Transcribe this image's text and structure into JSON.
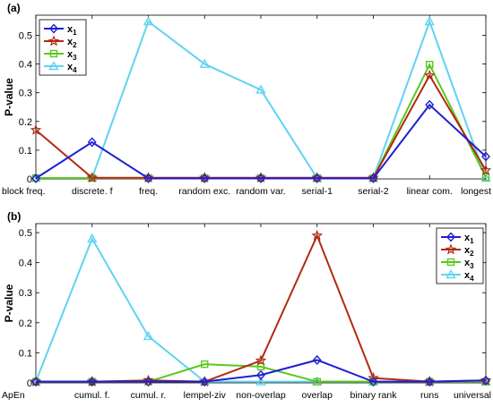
{
  "chart_data": [
    {
      "panel_label": "(a)",
      "type": "line",
      "ylabel": "P-value",
      "ylim": [
        0,
        0.57
      ],
      "yticks": [
        0,
        0.1,
        0.2,
        0.3,
        0.4,
        0.5
      ],
      "ytick_labels": [
        "0",
        "0.1",
        "0.2",
        "0.3",
        "0.4",
        "0.5"
      ],
      "categories": [
        "block freq.",
        "discrete. f",
        "freq.",
        "random exc.",
        "random var.",
        "serial-1",
        "serial-2",
        "linear com.",
        "longest"
      ],
      "legend_position": "top-left",
      "series": [
        {
          "name": "x1",
          "color": "#1f1fd1",
          "marker": "diamond",
          "values": [
            0.002,
            0.128,
            0.002,
            0.002,
            0.002,
            0.002,
            0.002,
            0.258,
            0.078
          ]
        },
        {
          "name": "x2",
          "color": "#b22a12",
          "marker": "star",
          "values": [
            0.17,
            0.004,
            0.004,
            0.004,
            0.004,
            0.004,
            0.004,
            0.36,
            0.03
          ]
        },
        {
          "name": "x3",
          "color": "#5ac81e",
          "marker": "square",
          "values": [
            0.003,
            0.003,
            0.003,
            0.003,
            0.003,
            0.003,
            0.003,
            0.398,
            0.006
          ]
        },
        {
          "name": "x4",
          "color": "#5fd3f3",
          "marker": "triangle",
          "values": [
            0.003,
            0.003,
            0.548,
            0.4,
            0.31,
            0.003,
            0.003,
            0.548,
            0.003
          ]
        }
      ]
    },
    {
      "panel_label": "(b)",
      "type": "line",
      "ylabel": "P-value",
      "ylim": [
        0,
        0.53
      ],
      "yticks": [
        0,
        0.1,
        0.2,
        0.3,
        0.4,
        0.5
      ],
      "ytick_labels": [
        "0",
        "0.1",
        "0.2",
        "0.3",
        "0.4",
        "0.5"
      ],
      "categories": [
        "ApEn",
        "cumul. f.",
        "cumul. r.",
        "lempel-ziv",
        "non-overlap",
        "overlap",
        "binary rank",
        "runs",
        "universal"
      ],
      "legend_position": "top-right",
      "series": [
        {
          "name": "x1",
          "color": "#1f1fd1",
          "marker": "diamond",
          "values": [
            0.004,
            0.004,
            0.004,
            0.004,
            0.026,
            0.076,
            0.004,
            0.004,
            0.008
          ]
        },
        {
          "name": "x2",
          "color": "#b22a12",
          "marker": "star",
          "values": [
            0.004,
            0.004,
            0.008,
            0.004,
            0.074,
            0.49,
            0.016,
            0.004,
            0.008
          ]
        },
        {
          "name": "x3",
          "color": "#5ac81e",
          "marker": "square",
          "values": [
            0.004,
            0.004,
            0.004,
            0.062,
            0.054,
            0.004,
            0.004,
            0.004,
            0.004
          ]
        },
        {
          "name": "x4",
          "color": "#5fd3f3",
          "marker": "triangle",
          "values": [
            0.004,
            0.48,
            0.155,
            0.004,
            0.004,
            0.004,
            0.004,
            0.004,
            0.004
          ]
        }
      ]
    }
  ]
}
